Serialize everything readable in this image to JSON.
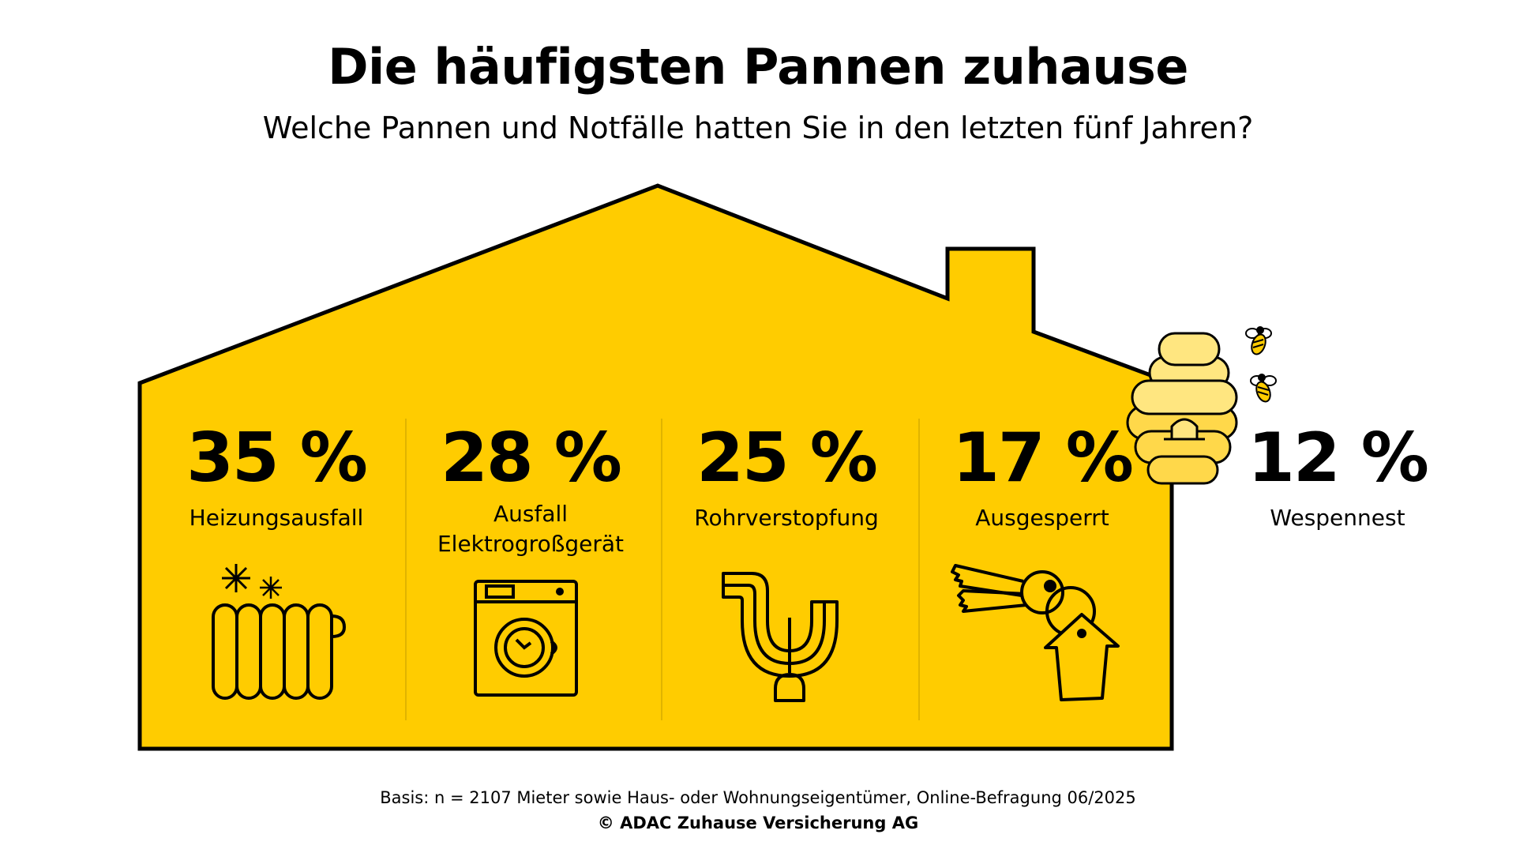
{
  "colors": {
    "accent": "#FFCC00",
    "ink": "#000000",
    "divider": "#E0B400",
    "hive_light": "#FFE680",
    "hive_mid": "#FFD84A"
  },
  "title": "Die häufigsten Pannen zuhause",
  "subtitle": "Welche Pannen und Notfälle hatten Sie in den letzten fünf Jahren?",
  "chart_data": {
    "type": "bar",
    "title": "Die häufigsten Pannen zuhause",
    "subtitle": "Welche Pannen und Notfälle hatten Sie in den letzten fünf Jahren?",
    "unit": "%",
    "categories": [
      "Heizungsausfall",
      "Ausfall Elektrogroßgerät",
      "Rohrverstopfung",
      "Ausgesperrt",
      "Wespennest"
    ],
    "values": [
      35,
      28,
      25,
      17,
      12
    ],
    "items": [
      {
        "value": 35,
        "value_label": "35 %",
        "label_lines": [
          "Heizungsausfall"
        ],
        "icon": "radiator-icon"
      },
      {
        "value": 28,
        "value_label": "28 %",
        "label_lines": [
          "Ausfall",
          "Elektrogroßgerät"
        ],
        "icon": "washing-machine-icon"
      },
      {
        "value": 25,
        "value_label": "25 %",
        "label_lines": [
          "Rohrverstopfung"
        ],
        "icon": "pipe-plunger-icon"
      },
      {
        "value": 17,
        "value_label": "17 %",
        "label_lines": [
          "Ausgesperrt"
        ],
        "icon": "keys-icon"
      },
      {
        "value": 12,
        "value_label": "12 %",
        "label_lines": [
          "Wespennest"
        ],
        "icon": "beehive-icon"
      }
    ]
  },
  "footnote": "Basis: n = 2107 Mieter sowie Haus- oder Wohnungseigentümer, Online-Befragung 06/2025",
  "copyright": "© ADAC Zuhause Versicherung AG"
}
